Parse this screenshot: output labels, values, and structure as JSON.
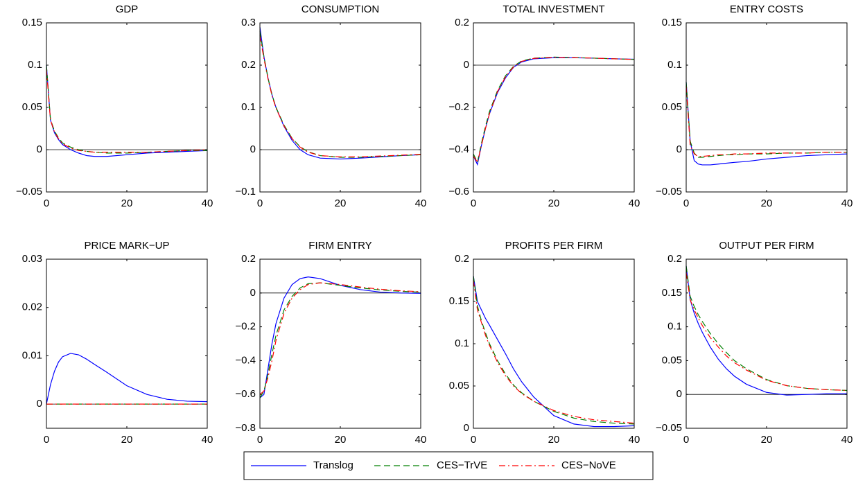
{
  "chart_data": [
    {
      "type": "line",
      "title": "GDP",
      "x": [
        0,
        1,
        2,
        3,
        4,
        6,
        8,
        10,
        12,
        15,
        20,
        25,
        30,
        35,
        40
      ],
      "xlim": [
        0,
        40
      ],
      "xticks": [
        0,
        20,
        40
      ],
      "ylim": [
        -0.05,
        0.15
      ],
      "yticks": [
        {
          "value": -0.05,
          "label": "−0.05"
        },
        0,
        0.05,
        0.1,
        0.15
      ],
      "zero_line": true,
      "legend": "bottom",
      "series": [
        {
          "name": "Translog",
          "color": "#0000ff",
          "linestyle": "solid",
          "values": [
            0.1,
            0.035,
            0.02,
            0.012,
            0.006,
            0,
            -0.004,
            -0.007,
            -0.008,
            -0.008,
            -0.006,
            -0.004,
            -0.003,
            -0.002,
            -0.001
          ]
        },
        {
          "name": "CES−TrVE",
          "color": "#008000",
          "linestyle": "dashed",
          "values": [
            0.1,
            0.036,
            0.022,
            0.014,
            0.008,
            0.003,
            0,
            -0.002,
            -0.003,
            -0.004,
            -0.004,
            -0.003,
            -0.002,
            -0.001,
            -0.001
          ]
        },
        {
          "name": "CES−NoVE",
          "color": "#ff0000",
          "linestyle": "dashdot",
          "values": [
            0.095,
            0.035,
            0.021,
            0.013,
            0.007,
            0.002,
            -0.001,
            -0.002,
            -0.003,
            -0.003,
            -0.003,
            -0.003,
            -0.002,
            -0.001,
            0
          ]
        }
      ]
    },
    {
      "type": "line",
      "title": "CONSUMPTION",
      "x": [
        0,
        1,
        2,
        3,
        4,
        6,
        8,
        10,
        12,
        15,
        20,
        25,
        30,
        35,
        40
      ],
      "xlim": [
        0,
        40
      ],
      "xticks": [
        0,
        20,
        40
      ],
      "ylim": [
        -0.1,
        0.3
      ],
      "yticks": [
        {
          "value": -0.1,
          "label": "−0.1"
        },
        0,
        0.1,
        0.2,
        0.3
      ],
      "zero_line": true,
      "series": [
        {
          "name": "Translog",
          "color": "#0000ff",
          "linestyle": "solid",
          "values": [
            0.29,
            0.22,
            0.17,
            0.13,
            0.1,
            0.055,
            0.022,
            0,
            -0.012,
            -0.02,
            -0.022,
            -0.02,
            -0.017,
            -0.014,
            -0.012
          ]
        },
        {
          "name": "CES−TrVE",
          "color": "#008000",
          "linestyle": "dashed",
          "values": [
            0.28,
            0.22,
            0.17,
            0.13,
            0.1,
            0.058,
            0.027,
            0.007,
            -0.005,
            -0.014,
            -0.018,
            -0.018,
            -0.016,
            -0.014,
            -0.012
          ]
        },
        {
          "name": "CES−NoVE",
          "color": "#ff0000",
          "linestyle": "dashdot",
          "values": [
            0.27,
            0.215,
            0.168,
            0.128,
            0.098,
            0.056,
            0.026,
            0.006,
            -0.006,
            -0.014,
            -0.017,
            -0.017,
            -0.015,
            -0.013,
            -0.011
          ]
        }
      ]
    },
    {
      "type": "line",
      "title": "TOTAL INVESTMENT",
      "x": [
        0,
        1,
        2,
        3,
        4,
        6,
        8,
        10,
        12,
        15,
        20,
        25,
        30,
        35,
        40
      ],
      "xlim": [
        0,
        40
      ],
      "xticks": [
        0,
        20,
        40
      ],
      "ylim": [
        -0.6,
        0.2
      ],
      "yticks": [
        {
          "value": -0.6,
          "label": "−0.6"
        },
        {
          "value": -0.4,
          "label": "−0.4"
        },
        {
          "value": -0.2,
          "label": "−0.2"
        },
        0,
        0.2
      ],
      "zero_line": true,
      "series": [
        {
          "name": "Translog",
          "color": "#0000ff",
          "linestyle": "solid",
          "values": [
            -0.43,
            -0.47,
            -0.38,
            -0.3,
            -0.23,
            -0.13,
            -0.06,
            -0.01,
            0.015,
            0.03,
            0.035,
            0.035,
            0.033,
            0.03,
            0.028
          ]
        },
        {
          "name": "CES−TrVE",
          "color": "#008000",
          "linestyle": "dashed",
          "values": [
            -0.42,
            -0.46,
            -0.37,
            -0.29,
            -0.22,
            -0.12,
            -0.05,
            -0.005,
            0.02,
            0.033,
            0.038,
            0.036,
            0.033,
            0.03,
            0.027
          ]
        },
        {
          "name": "CES−NoVE",
          "color": "#ff0000",
          "linestyle": "dashdot",
          "values": [
            -0.43,
            -0.46,
            -0.38,
            -0.3,
            -0.23,
            -0.125,
            -0.055,
            -0.008,
            0.018,
            0.032,
            0.037,
            0.036,
            0.033,
            0.03,
            0.027
          ]
        }
      ]
    },
    {
      "type": "line",
      "title": "ENTRY COSTS",
      "x": [
        0,
        1,
        2,
        3,
        4,
        6,
        8,
        10,
        12,
        15,
        20,
        25,
        30,
        35,
        40
      ],
      "xlim": [
        0,
        40
      ],
      "xticks": [
        0,
        20,
        40
      ],
      "ylim": [
        -0.05,
        0.15
      ],
      "yticks": [
        {
          "value": -0.05,
          "label": "−0.05"
        },
        0,
        0.05,
        0.1,
        0.15
      ],
      "zero_line": true,
      "series": [
        {
          "name": "Translog",
          "color": "#0000ff",
          "linestyle": "solid",
          "values": [
            0.08,
            0.01,
            -0.013,
            -0.017,
            -0.018,
            -0.018,
            -0.017,
            -0.016,
            -0.015,
            -0.014,
            -0.011,
            -0.009,
            -0.007,
            -0.006,
            -0.005
          ]
        },
        {
          "name": "CES−TrVE",
          "color": "#008000",
          "linestyle": "dashed",
          "values": [
            0.08,
            0.01,
            -0.004,
            -0.009,
            -0.009,
            -0.008,
            -0.007,
            -0.006,
            -0.006,
            -0.005,
            -0.005,
            -0.004,
            -0.004,
            -0.003,
            -0.003
          ]
        },
        {
          "name": "CES−NoVE",
          "color": "#ff0000",
          "linestyle": "dashdot",
          "values": [
            0.075,
            0.005,
            -0.005,
            -0.008,
            -0.008,
            -0.007,
            -0.006,
            -0.006,
            -0.005,
            -0.005,
            -0.004,
            -0.004,
            -0.004,
            -0.003,
            -0.003
          ]
        }
      ]
    },
    {
      "type": "line",
      "title": "PRICE MARK−UP",
      "x": [
        0,
        1,
        2,
        3,
        4,
        6,
        8,
        10,
        12,
        15,
        20,
        25,
        30,
        35,
        40
      ],
      "xlim": [
        0,
        40
      ],
      "xticks": [
        0,
        20,
        40
      ],
      "ylim": [
        -0.005,
        0.03
      ],
      "yticks": [
        0,
        0.01,
        0.02,
        0.03
      ],
      "zero_line": true,
      "series": [
        {
          "name": "Translog",
          "color": "#0000ff",
          "linestyle": "solid",
          "values": [
            0,
            0.004,
            0.0068,
            0.0087,
            0.0098,
            0.0105,
            0.0102,
            0.0093,
            0.0082,
            0.0066,
            0.0038,
            0.002,
            0.001,
            0.0006,
            0.0005
          ]
        },
        {
          "name": "CES−TrVE",
          "color": "#008000",
          "linestyle": "dashed",
          "values": [
            0,
            0,
            0,
            0,
            0,
            0,
            0,
            0,
            0,
            0,
            0,
            0,
            0,
            0,
            0
          ]
        },
        {
          "name": "CES−NoVE",
          "color": "#ff0000",
          "linestyle": "dashdot",
          "values": [
            0,
            0,
            0,
            0,
            0,
            0,
            0,
            0,
            0,
            0,
            0,
            0,
            0,
            0,
            0
          ]
        }
      ]
    },
    {
      "type": "line",
      "title": "FIRM ENTRY",
      "x": [
        0,
        1,
        2,
        3,
        4,
        6,
        8,
        10,
        12,
        15,
        20,
        25,
        30,
        35,
        40
      ],
      "xlim": [
        0,
        40
      ],
      "xticks": [
        0,
        20,
        40
      ],
      "ylim": [
        -0.8,
        0.2
      ],
      "yticks": [
        {
          "value": -0.8,
          "label": "−0.8"
        },
        {
          "value": -0.6,
          "label": "−0.6"
        },
        {
          "value": -0.4,
          "label": "−0.4"
        },
        {
          "value": -0.2,
          "label": "−0.2"
        },
        0,
        0.2
      ],
      "zero_line": true,
      "series": [
        {
          "name": "Translog",
          "color": "#0000ff",
          "linestyle": "solid",
          "values": [
            -0.62,
            -0.6,
            -0.45,
            -0.3,
            -0.18,
            -0.03,
            0.05,
            0.085,
            0.095,
            0.085,
            0.045,
            0.02,
            0.005,
            0,
            -0.002
          ]
        },
        {
          "name": "CES−TrVE",
          "color": "#008000",
          "linestyle": "dashed",
          "values": [
            -0.62,
            -0.58,
            -0.48,
            -0.36,
            -0.25,
            -0.1,
            -0.02,
            0.03,
            0.055,
            0.06,
            0.045,
            0.03,
            0.018,
            0.01,
            0.005
          ]
        },
        {
          "name": "CES−NoVE",
          "color": "#ff0000",
          "linestyle": "dashdot",
          "values": [
            -0.6,
            -0.58,
            -0.5,
            -0.4,
            -0.28,
            -0.12,
            -0.03,
            0.02,
            0.05,
            0.06,
            0.05,
            0.035,
            0.022,
            0.013,
            0.008
          ]
        }
      ]
    },
    {
      "type": "line",
      "title": "PROFITS PER FIRM",
      "x": [
        0,
        1,
        2,
        3,
        4,
        6,
        8,
        10,
        12,
        15,
        20,
        25,
        30,
        35,
        40
      ],
      "xlim": [
        0,
        40
      ],
      "xticks": [
        0,
        20,
        40
      ],
      "ylim": [
        0,
        0.2
      ],
      "yticks": [
        0,
        0.05,
        0.1,
        0.15,
        0.2
      ],
      "zero_line": true,
      "series": [
        {
          "name": "Translog",
          "color": "#0000ff",
          "linestyle": "solid",
          "values": [
            0.18,
            0.15,
            0.14,
            0.13,
            0.122,
            0.105,
            0.088,
            0.07,
            0.055,
            0.037,
            0.015,
            0.005,
            0.002,
            0.002,
            0.003
          ]
        },
        {
          "name": "CES−TrVE",
          "color": "#008000",
          "linestyle": "dashed",
          "values": [
            0.18,
            0.145,
            0.127,
            0.113,
            0.1,
            0.08,
            0.064,
            0.051,
            0.042,
            0.032,
            0.02,
            0.012,
            0.008,
            0.006,
            0.005
          ]
        },
        {
          "name": "CES−NoVE",
          "color": "#ff0000",
          "linestyle": "dashdot",
          "values": [
            0.175,
            0.14,
            0.125,
            0.11,
            0.098,
            0.078,
            0.062,
            0.05,
            0.041,
            0.032,
            0.021,
            0.014,
            0.01,
            0.008,
            0.006
          ]
        }
      ]
    },
    {
      "type": "line",
      "title": "OUTPUT PER FIRM",
      "x": [
        0,
        1,
        2,
        3,
        4,
        6,
        8,
        10,
        12,
        15,
        20,
        25,
        30,
        35,
        40
      ],
      "xlim": [
        0,
        40
      ],
      "xticks": [
        0,
        20,
        40
      ],
      "ylim": [
        -0.05,
        0.2
      ],
      "yticks": [
        {
          "value": -0.05,
          "label": "−0.05"
        },
        0,
        0.05,
        0.1,
        0.15,
        0.2
      ],
      "zero_line": true,
      "series": [
        {
          "name": "Translog",
          "color": "#0000ff",
          "linestyle": "solid",
          "values": [
            0.19,
            0.14,
            0.12,
            0.105,
            0.092,
            0.07,
            0.052,
            0.038,
            0.027,
            0.015,
            0.003,
            -0.001,
            0,
            0.001,
            0.001
          ]
        },
        {
          "name": "CES−TrVE",
          "color": "#008000",
          "linestyle": "dashed",
          "values": [
            0.19,
            0.145,
            0.13,
            0.118,
            0.108,
            0.09,
            0.075,
            0.062,
            0.05,
            0.038,
            0.022,
            0.013,
            0.009,
            0.007,
            0.006
          ]
        },
        {
          "name": "CES−NoVE",
          "color": "#ff0000",
          "linestyle": "dashdot",
          "values": [
            0.18,
            0.14,
            0.125,
            0.113,
            0.102,
            0.084,
            0.07,
            0.057,
            0.047,
            0.036,
            0.021,
            0.013,
            0.009,
            0.007,
            0.006
          ]
        }
      ]
    }
  ]
}
